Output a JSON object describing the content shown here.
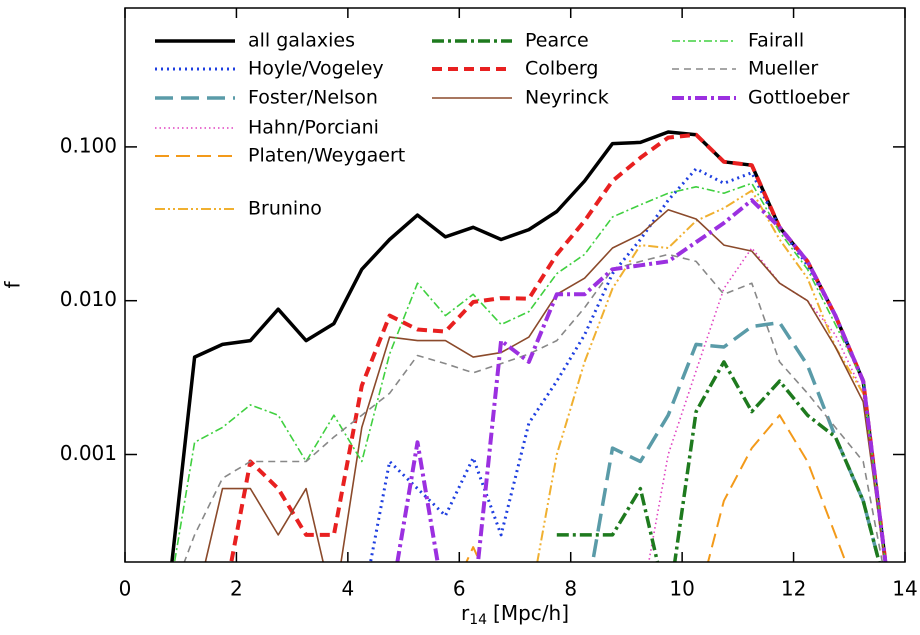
{
  "chart_data": {
    "type": "line",
    "ylabel": "f",
    "xlabel_main": "r",
    "xlabel_sub": "14",
    "xlabel_unit": "[Mpc/h]",
    "log_y": true,
    "xlim": [
      0,
      14
    ],
    "ylim": [
      0.0002,
      0.8
    ],
    "xticks": [
      0,
      2,
      4,
      6,
      8,
      10,
      12,
      14
    ],
    "yticks": [
      {
        "value": 0.1,
        "label": "0.100"
      },
      {
        "value": 0.01,
        "label": "0.010"
      },
      0.001
    ],
    "x": [
      0.75,
      1.25,
      1.75,
      2.25,
      2.75,
      3.25,
      3.75,
      4.25,
      4.75,
      5.25,
      5.75,
      6.25,
      6.75,
      7.25,
      7.75,
      8.25,
      8.75,
      9.25,
      9.75,
      10.25,
      10.75,
      11.25,
      11.75,
      12.25,
      12.75,
      13.25,
      13.75
    ],
    "series": [
      {
        "name": "all galaxies",
        "color": "#000000",
        "width": 3.5,
        "dash": "none",
        "values": [
          0.0001,
          0.0043,
          0.0052,
          0.0055,
          0.0088,
          0.0055,
          0.0071,
          0.016,
          0.025,
          0.036,
          0.026,
          0.03,
          0.025,
          0.029,
          0.038,
          0.06,
          0.105,
          0.107,
          0.125,
          0.12,
          0.08,
          0.076,
          0.03,
          0.018,
          0.008,
          0.003,
          0.0001
        ]
      },
      {
        "name": "Hoyle/Vogeley",
        "color": "#1f3fe0",
        "width": 3,
        "dash": "2 4",
        "values": [
          null,
          null,
          null,
          null,
          null,
          null,
          null,
          0.0001,
          0.0009,
          0.0006,
          0.0004,
          0.00095,
          0.0003,
          0.0016,
          0.003,
          0.006,
          0.015,
          0.025,
          0.045,
          0.072,
          0.058,
          0.068,
          0.03,
          0.017,
          0.008,
          0.003,
          0.0001
        ]
      },
      {
        "name": "Foster/Nelson",
        "color": "#5a9ba8",
        "width": 3.5,
        "dash": "18 8",
        "values": [
          null,
          null,
          null,
          null,
          null,
          null,
          null,
          null,
          null,
          null,
          null,
          null,
          null,
          null,
          null,
          0.0001,
          0.0011,
          0.0009,
          0.0018,
          0.0052,
          0.005,
          0.0068,
          0.0072,
          0.0038,
          0.0013,
          0.0005,
          0.0001
        ]
      },
      {
        "name": "Hahn/Porciani",
        "color": "#e040c0",
        "width": 1.6,
        "dash": "1.5 3",
        "values": [
          null,
          null,
          null,
          null,
          null,
          null,
          null,
          null,
          null,
          null,
          null,
          null,
          null,
          null,
          null,
          null,
          null,
          0.0001,
          0.001,
          0.0035,
          0.012,
          0.022,
          0.013,
          0.01,
          0.006,
          0.0025,
          0.0001
        ]
      },
      {
        "name": "Platen/Weygaert",
        "color": "#f39a1a",
        "width": 2,
        "dash": "14 7",
        "values": [
          null,
          null,
          null,
          null,
          null,
          null,
          null,
          null,
          null,
          null,
          0.0001,
          0.00025,
          0.0001,
          null,
          null,
          null,
          null,
          null,
          null,
          0.0001,
          0.0005,
          0.0011,
          0.0018,
          0.0009,
          0.0003,
          0.0001,
          null
        ]
      },
      {
        "name": "Brunino",
        "color": "#f0b030",
        "width": 2,
        "dash": "10 3 2 3 2 3",
        "values": [
          null,
          null,
          null,
          null,
          null,
          null,
          null,
          null,
          null,
          null,
          null,
          null,
          null,
          0.0001,
          0.001,
          0.004,
          0.012,
          0.023,
          0.022,
          0.033,
          0.04,
          0.052,
          0.025,
          0.014,
          0.005,
          0.0025,
          0.0001
        ]
      },
      {
        "name": "Pearce",
        "color": "#1e7a1e",
        "width": 3.5,
        "dash": "12 4 3 4",
        "values": [
          null,
          null,
          null,
          null,
          null,
          null,
          null,
          null,
          null,
          null,
          null,
          null,
          null,
          null,
          0.0003,
          0.0003,
          0.0003,
          0.0006,
          0.0001,
          0.0019,
          0.004,
          0.0019,
          0.003,
          0.0018,
          0.0013,
          0.0005,
          0.0001
        ]
      },
      {
        "name": "Colberg",
        "color": "#e82020",
        "width": 4,
        "dash": "10 6",
        "values": [
          null,
          null,
          0.0001,
          0.0009,
          0.0006,
          0.0003,
          0.0003,
          0.0028,
          0.008,
          0.0065,
          0.0063,
          0.0098,
          0.0104,
          0.0103,
          0.02,
          0.033,
          0.06,
          0.085,
          0.115,
          0.12,
          0.08,
          0.076,
          0.03,
          0.018,
          0.008,
          0.003,
          0.0001
        ]
      },
      {
        "name": "Neyrinck",
        "color": "#8b4a2b",
        "width": 1.6,
        "dash": "none",
        "values": [
          null,
          0.0001,
          0.0006,
          0.0006,
          0.0003,
          0.0006,
          0.0001,
          0.0015,
          0.0058,
          0.0055,
          0.0055,
          0.0043,
          0.0046,
          0.0058,
          0.011,
          0.014,
          0.022,
          0.027,
          0.039,
          0.034,
          0.023,
          0.021,
          0.013,
          0.01,
          0.005,
          0.0022,
          0.0001
        ]
      },
      {
        "name": "Fairall",
        "color": "#40d040",
        "width": 1.6,
        "dash": "8 3 2 3",
        "values": [
          0.0001,
          0.0012,
          0.0015,
          0.0021,
          0.0018,
          0.0009,
          0.0018,
          0.0009,
          0.0045,
          0.013,
          0.008,
          0.011,
          0.007,
          0.0085,
          0.015,
          0.02,
          0.035,
          0.042,
          0.05,
          0.055,
          0.05,
          0.058,
          0.028,
          0.016,
          0.007,
          0.003,
          0.0001
        ]
      },
      {
        "name": "Mueller",
        "color": "#888888",
        "width": 1.6,
        "dash": "7 5",
        "values": [
          0.0001,
          0.0003,
          0.0007,
          0.0009,
          0.0009,
          0.0009,
          0.0013,
          0.0018,
          0.0025,
          0.0044,
          0.0039,
          0.0034,
          0.0039,
          0.0045,
          0.0055,
          0.009,
          0.016,
          0.018,
          0.02,
          0.018,
          0.011,
          0.013,
          0.004,
          0.0025,
          0.0015,
          0.0009,
          0.0001
        ]
      },
      {
        "name": "Gottloeber",
        "color": "#9b30e0",
        "width": 4,
        "dash": "12 4 3 4",
        "values": [
          null,
          null,
          null,
          null,
          null,
          null,
          null,
          null,
          0.0001,
          0.0012,
          0.0001,
          0.0001,
          0.0055,
          0.004,
          0.011,
          0.011,
          0.016,
          0.017,
          0.018,
          0.024,
          0.032,
          0.045,
          0.03,
          0.018,
          0.008,
          0.003,
          0.0001
        ]
      }
    ]
  }
}
